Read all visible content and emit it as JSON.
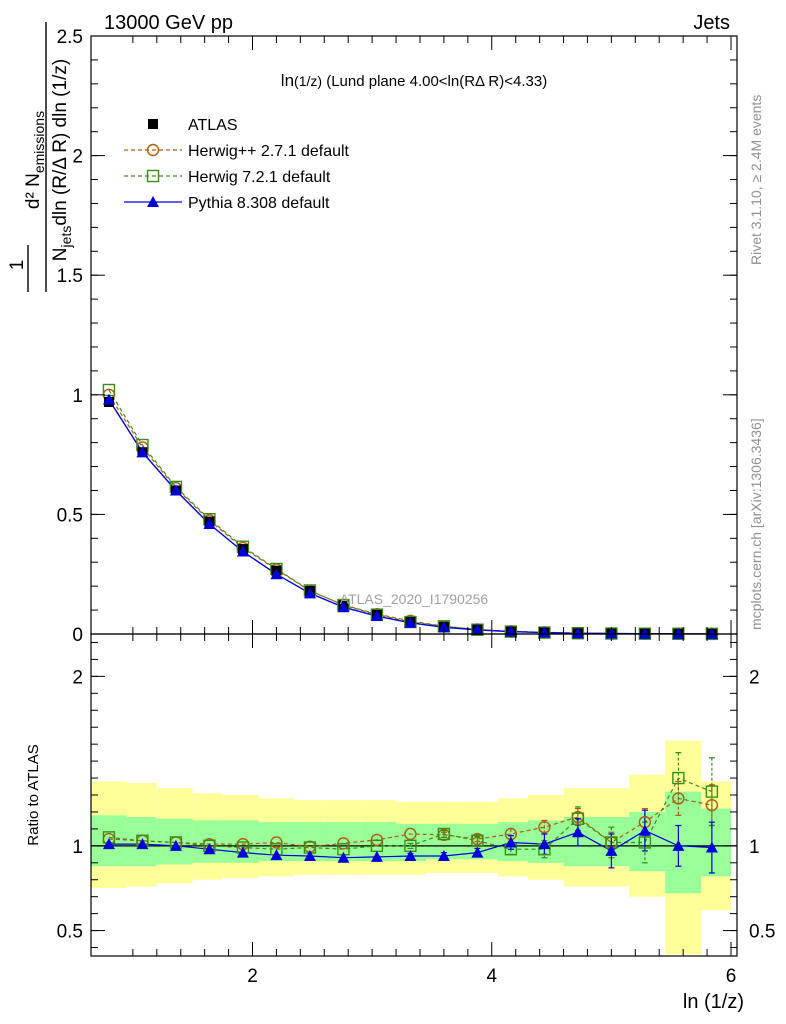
{
  "header": {
    "left": "13000 GeV pp",
    "right": "Jets",
    "plot_title_main": "ln",
    "plot_title_sub": "(1/z)",
    "plot_title_rest": " (Lund plane 4.00<ln(RΔ R)<4.33)",
    "watermark": "ATLAS_2020_I1790256",
    "side_top": "Rivet 3.1.10, ≥ 2.4M events",
    "side_bottom": "mcplots.cern.ch [arXiv:1306.3436]"
  },
  "colors": {
    "atlas": "#000000",
    "herwigpp": "#b05a10",
    "herwig7": "#3a8c1a",
    "pythia": "#0000dd",
    "band_outer": "#ffff99",
    "band_inner": "#99ff99"
  },
  "chart_data": [
    {
      "type": "line",
      "panel": "main",
      "ylabel": "1/N_jets d²N_emissions / dln(R/Δ R) dln(1/z)",
      "xlim": [
        0.65,
        6.05
      ],
      "ylim": [
        0,
        2.5
      ],
      "y_ticks": [
        0,
        0.5,
        1,
        1.5,
        2,
        2.5
      ],
      "y_tick_labels": [
        "0",
        "0.5",
        "1",
        "1.5",
        "2",
        "2.5"
      ],
      "x": [
        0.8,
        1.08,
        1.36,
        1.64,
        1.92,
        2.2,
        2.48,
        2.76,
        3.04,
        3.32,
        3.6,
        3.88,
        4.16,
        4.44,
        4.72,
        5.0,
        5.28,
        5.56,
        5.84
      ],
      "series": [
        {
          "name": "ATLAS",
          "key": "atlas",
          "values": [
            0.97,
            0.76,
            0.6,
            0.47,
            0.355,
            0.265,
            0.18,
            0.12,
            0.08,
            0.05,
            0.03,
            0.018,
            0.01,
            0.006,
            0.003,
            0.002,
            0.0012,
            0.0007,
            0.0004
          ]
        },
        {
          "name": "Herwig++ 2.7.1 default",
          "key": "herwigpp",
          "values": [
            1.0,
            0.78,
            0.61,
            0.475,
            0.36,
            0.27,
            0.18,
            0.122,
            0.083,
            0.055,
            0.032,
            0.019,
            0.011,
            0.007,
            0.0035,
            0.002,
            0.0014,
            0.001,
            0.0005
          ]
        },
        {
          "name": "Herwig 7.2.1 default",
          "key": "herwig7",
          "values": [
            1.02,
            0.79,
            0.615,
            0.48,
            0.365,
            0.272,
            0.182,
            0.121,
            0.081,
            0.05,
            0.032,
            0.018,
            0.01,
            0.006,
            0.0034,
            0.002,
            0.0013,
            0.001,
            0.0005
          ]
        },
        {
          "name": "Pythia 8.308 default",
          "key": "pythia",
          "values": [
            0.98,
            0.76,
            0.6,
            0.46,
            0.345,
            0.25,
            0.17,
            0.112,
            0.075,
            0.047,
            0.028,
            0.017,
            0.01,
            0.006,
            0.003,
            0.002,
            0.0012,
            0.0007,
            0.0004
          ]
        }
      ],
      "legend": "top-left"
    },
    {
      "type": "line",
      "panel": "ratio",
      "xlabel": "ln (1/z)",
      "ylabel": "Ratio to ATLAS",
      "xlim": [
        0.65,
        6.05
      ],
      "ylim": [
        0.35,
        2.25
      ],
      "y_ticks": [
        0.5,
        1,
        2
      ],
      "y_tick_labels": [
        "0.5",
        "1",
        "2"
      ],
      "x_ticks": [
        2,
        4,
        6
      ],
      "x_tick_labels": [
        "2",
        "4",
        "6"
      ],
      "x": [
        0.8,
        1.08,
        1.36,
        1.64,
        1.92,
        2.2,
        2.48,
        2.76,
        3.04,
        3.32,
        3.6,
        3.88,
        4.16,
        4.44,
        4.72,
        5.0,
        5.28,
        5.56,
        5.84
      ],
      "bins": [
        [
          0.65,
          0.95
        ],
        [
          0.95,
          1.2
        ],
        [
          1.2,
          1.5
        ],
        [
          1.5,
          1.75
        ],
        [
          1.75,
          2.05
        ],
        [
          2.05,
          2.35
        ],
        [
          2.35,
          2.6
        ],
        [
          2.6,
          2.9
        ],
        [
          2.9,
          3.2
        ],
        [
          3.2,
          3.45
        ],
        [
          3.45,
          3.75
        ],
        [
          3.75,
          4.05
        ],
        [
          4.05,
          4.3
        ],
        [
          4.3,
          4.6
        ],
        [
          4.6,
          4.9
        ],
        [
          4.9,
          5.15
        ],
        [
          5.15,
          5.45
        ],
        [
          5.45,
          5.75
        ],
        [
          5.75,
          6.0
        ]
      ],
      "band_outer": [
        [
          0.75,
          1.38
        ],
        [
          0.76,
          1.37
        ],
        [
          0.78,
          1.34
        ],
        [
          0.8,
          1.31
        ],
        [
          0.81,
          1.3
        ],
        [
          0.82,
          1.28
        ],
        [
          0.83,
          1.27
        ],
        [
          0.83,
          1.27
        ],
        [
          0.83,
          1.27
        ],
        [
          0.83,
          1.26
        ],
        [
          0.84,
          1.26
        ],
        [
          0.84,
          1.26
        ],
        [
          0.82,
          1.28
        ],
        [
          0.8,
          1.3
        ],
        [
          0.76,
          1.34
        ],
        [
          0.76,
          1.34
        ],
        [
          0.7,
          1.42
        ],
        [
          0.36,
          1.62
        ],
        [
          0.62,
          1.38
        ]
      ],
      "band_inner": [
        [
          0.88,
          1.18
        ],
        [
          0.88,
          1.17
        ],
        [
          0.89,
          1.16
        ],
        [
          0.9,
          1.15
        ],
        [
          0.9,
          1.15
        ],
        [
          0.91,
          1.14
        ],
        [
          0.91,
          1.14
        ],
        [
          0.91,
          1.14
        ],
        [
          0.91,
          1.14
        ],
        [
          0.91,
          1.13
        ],
        [
          0.92,
          1.13
        ],
        [
          0.92,
          1.13
        ],
        [
          0.91,
          1.14
        ],
        [
          0.9,
          1.15
        ],
        [
          0.88,
          1.17
        ],
        [
          0.88,
          1.17
        ],
        [
          0.85,
          1.2
        ],
        [
          0.72,
          1.32
        ],
        [
          0.82,
          1.22
        ]
      ],
      "series": [
        {
          "name": "Herwig++ 2.7.1 default",
          "key": "herwigpp",
          "values": [
            1.04,
            1.03,
            1.02,
            1.01,
            1.01,
            1.02,
            0.995,
            1.015,
            1.035,
            1.07,
            1.065,
            1.04,
            1.07,
            1.11,
            1.17,
            1.02,
            1.14,
            1.28,
            1.24
          ],
          "err": [
            0.01,
            0.01,
            0.01,
            0.01,
            0.01,
            0.01,
            0.01,
            0.01,
            0.01,
            0.01,
            0.015,
            0.015,
            0.03,
            0.04,
            0.05,
            0.06,
            0.08,
            0.1,
            0.12
          ]
        },
        {
          "name": "Herwig 7.2.1 default",
          "key": "herwig7",
          "values": [
            1.05,
            1.03,
            1.02,
            1.0,
            0.99,
            0.98,
            0.99,
            0.98,
            1.0,
            1.0,
            1.07,
            1.03,
            0.98,
            0.98,
            1.16,
            1.02,
            1.02,
            1.4,
            1.32
          ],
          "err": [
            0.01,
            0.01,
            0.01,
            0.01,
            0.01,
            0.01,
            0.01,
            0.01,
            0.01,
            0.015,
            0.02,
            0.02,
            0.03,
            0.05,
            0.07,
            0.09,
            0.12,
            0.15,
            0.2
          ]
        },
        {
          "name": "Pythia 8.308 default",
          "key": "pythia",
          "values": [
            1.01,
            1.01,
            1.0,
            0.98,
            0.96,
            0.945,
            0.94,
            0.93,
            0.935,
            0.94,
            0.94,
            0.96,
            1.02,
            1.01,
            1.08,
            0.97,
            1.09,
            1.0,
            0.99
          ],
          "err": [
            0.01,
            0.01,
            0.01,
            0.01,
            0.01,
            0.01,
            0.01,
            0.01,
            0.01,
            0.015,
            0.02,
            0.025,
            0.04,
            0.06,
            0.08,
            0.1,
            0.12,
            0.12,
            0.15
          ]
        }
      ]
    }
  ]
}
